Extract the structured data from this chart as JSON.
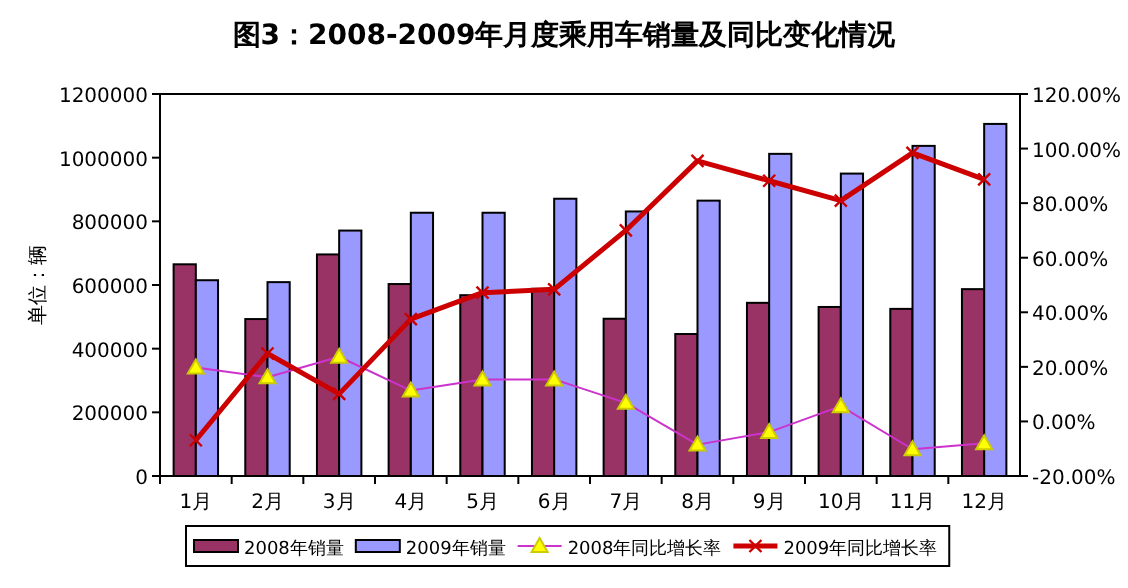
{
  "chart_data": {
    "type": "bar",
    "title": "图3：2008-2009年月度乘用车销量及同比变化情况",
    "ylabel": "单位：辆",
    "categories": [
      "1月",
      "2月",
      "3月",
      "4月",
      "5月",
      "6月",
      "7月",
      "8月",
      "9月",
      "10月",
      "11月",
      "12月"
    ],
    "series": [
      {
        "name": "2008年销量",
        "color": "#993366",
        "values": [
          665000,
          493000,
          696000,
          603000,
          568000,
          588000,
          494000,
          446000,
          544000,
          531000,
          525000,
          587000
        ]
      },
      {
        "name": "2009年销量",
        "color": "#9999ff",
        "values": [
          615000,
          609000,
          771000,
          827000,
          827000,
          871000,
          831000,
          865000,
          1012000,
          950000,
          1037000,
          1106000
        ]
      },
      {
        "name": "2008年同比增长率",
        "type": "line",
        "axis": "y2",
        "color": "#cc33cc",
        "marker": "triangle",
        "values": [
          19.8,
          16.2,
          23.7,
          11.3,
          15.4,
          15.4,
          6.8,
          -8.5,
          -3.9,
          5.6,
          -10.2,
          -8.0
        ]
      },
      {
        "name": "2009年同比增长率",
        "type": "line",
        "axis": "y2",
        "color": "#cc0000",
        "marker": "cross",
        "values": [
          -6.9,
          24.9,
          10.1,
          37.5,
          47.2,
          48.4,
          70.0,
          95.5,
          88.2,
          80.9,
          98.4,
          88.7
        ]
      }
    ],
    "ylim": [
      0,
      1200000
    ],
    "yticks": [
      0,
      200000,
      400000,
      600000,
      800000,
      1000000,
      1200000
    ],
    "y2lim": [
      -20,
      120
    ],
    "y2ticks": [
      {
        "value": -20,
        "label": "-20.00%"
      },
      {
        "value": 0,
        "label": "0.00%"
      },
      {
        "value": 20,
        "label": "20.00%"
      },
      {
        "value": 40,
        "label": "40.00%"
      },
      {
        "value": 60,
        "label": "60.00%"
      },
      {
        "value": 80,
        "label": "80.00%"
      },
      {
        "value": 100,
        "label": "100.00%"
      },
      {
        "value": 120,
        "label": "120.00%"
      }
    ],
    "grid": false,
    "legend": "bottom"
  }
}
